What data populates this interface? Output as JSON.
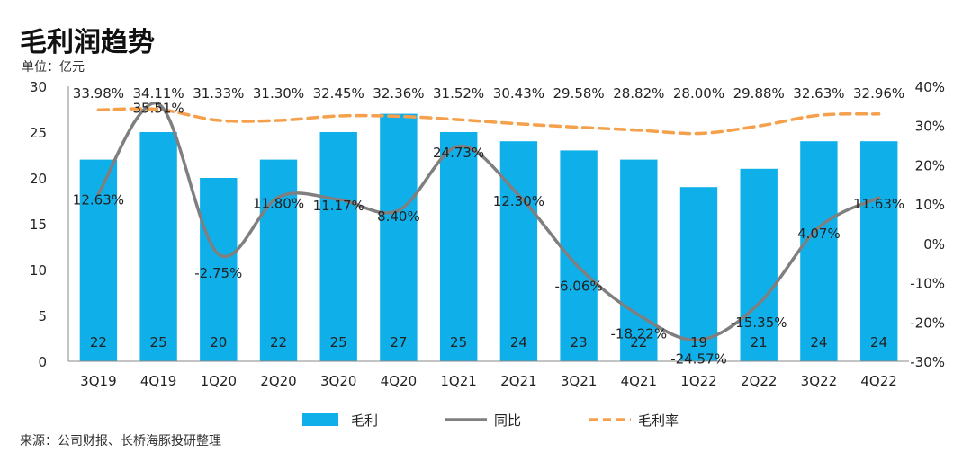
{
  "title": "毛利润趋势",
  "unit_label": "单位：亿元",
  "source": "来源：公司财报、长桥海豚投研整理",
  "chart_data": {
    "type": "bar",
    "categories": [
      "3Q19",
      "4Q19",
      "1Q20",
      "2Q20",
      "3Q20",
      "4Q20",
      "1Q21",
      "2Q21",
      "3Q21",
      "4Q21",
      "1Q22",
      "2Q22",
      "3Q22",
      "4Q22"
    ],
    "series": [
      {
        "name": "毛利",
        "type": "bar",
        "axis": "left",
        "color": "#0fb0ea",
        "values": [
          22,
          25,
          20,
          22,
          25,
          27,
          25,
          24,
          23,
          22,
          19,
          21,
          24,
          24
        ],
        "labels": [
          "22",
          "25",
          "20",
          "22",
          "25",
          "27",
          "25",
          "24",
          "23",
          "22",
          "19",
          "21",
          "24",
          "24"
        ]
      },
      {
        "name": "同比",
        "type": "line",
        "axis": "right",
        "color": "#7f7f7f",
        "values": [
          12.63,
          35.51,
          -2.75,
          11.8,
          11.17,
          8.4,
          24.73,
          12.3,
          -6.06,
          -18.22,
          -24.57,
          -15.35,
          4.07,
          11.63
        ],
        "labels": [
          "12.63%",
          "35.51%",
          "-2.75%",
          "11.80%",
          "11.17%",
          "8.40%",
          "24.73%",
          "12.30%",
          "-6.06%",
          "-18.22%",
          "-24.57%",
          "-15.35%",
          "4.07%",
          "11.63%"
        ]
      },
      {
        "name": "毛利率",
        "type": "line-dashed",
        "axis": "right",
        "color": "#f5a04c",
        "values": [
          33.98,
          34.11,
          31.33,
          31.3,
          32.45,
          32.36,
          31.52,
          30.43,
          29.58,
          28.82,
          28.0,
          29.88,
          32.63,
          32.96
        ],
        "labels": [
          "33.98%",
          "34.11%",
          "31.33%",
          "31.30%",
          "32.45%",
          "32.36%",
          "31.52%",
          "30.43%",
          "29.58%",
          "28.82%",
          "28.00%",
          "29.88%",
          "32.63%",
          "32.96%"
        ]
      }
    ],
    "y_left": {
      "min": 0,
      "max": 30,
      "ticks": [
        "0",
        "5",
        "10",
        "15",
        "20",
        "25",
        "30"
      ]
    },
    "y_right": {
      "min": -30,
      "max": 40,
      "ticks": [
        "-30%",
        "-20%",
        "-10%",
        "0%",
        "10%",
        "20%",
        "30%",
        "40%"
      ]
    },
    "legend_position": "bottom",
    "grid": false
  }
}
